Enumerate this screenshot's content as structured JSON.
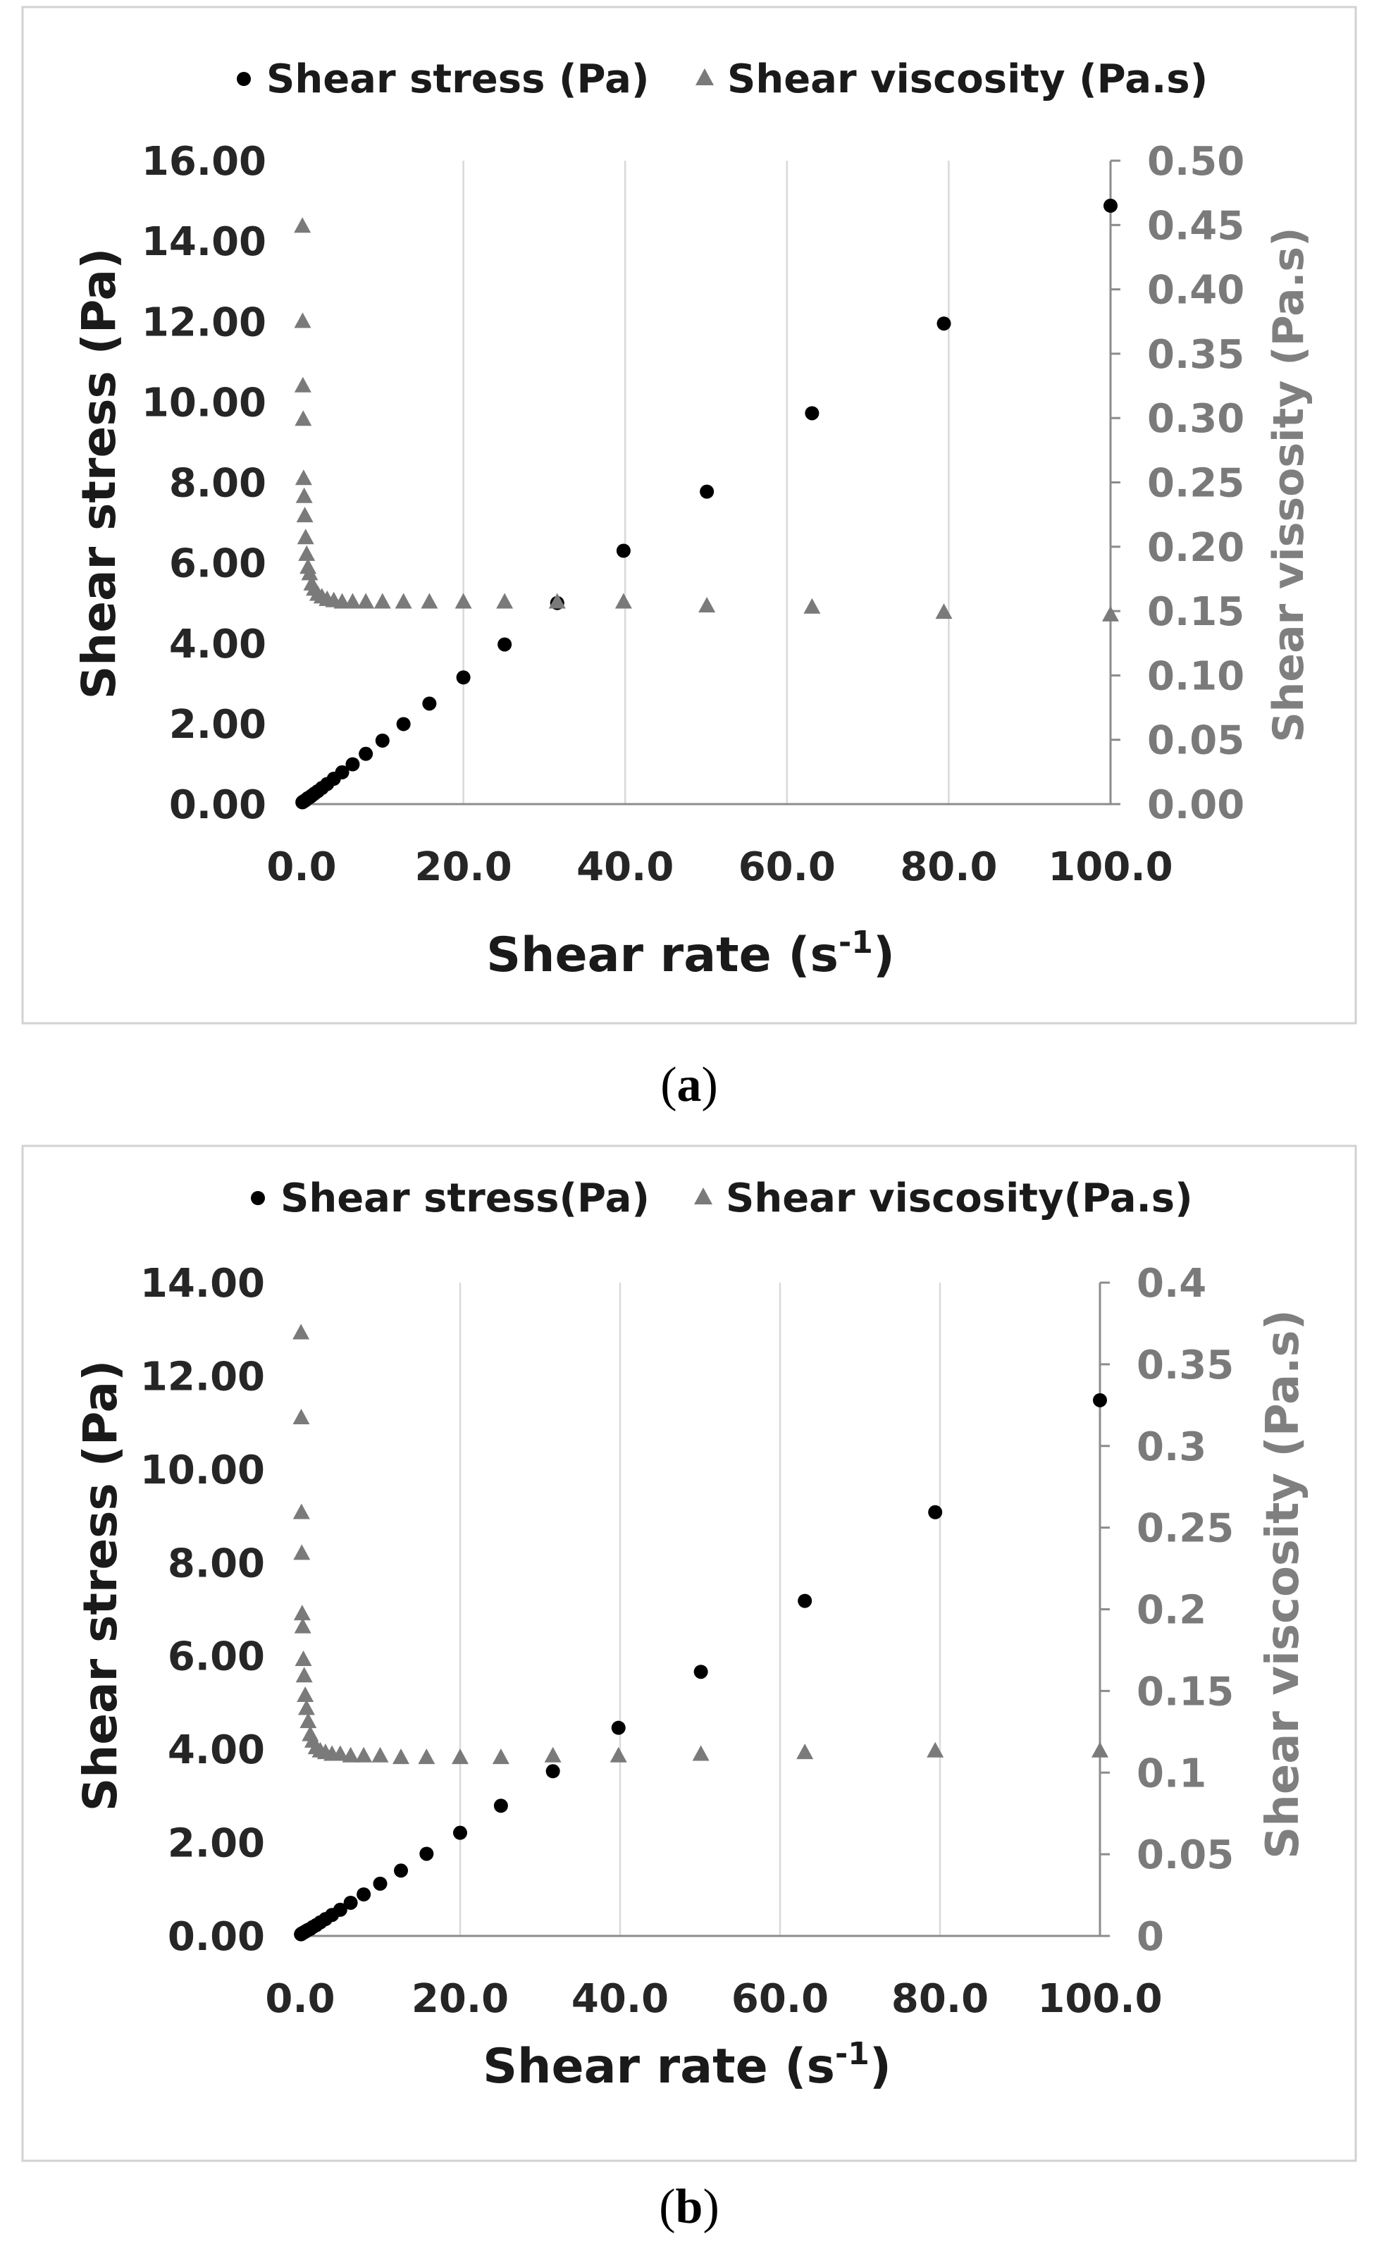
{
  "chart_data": [
    {
      "type": "scatter",
      "caption_letter": "a",
      "xlabel": "Shear rate (s",
      "xlabel_sup": "-1",
      "xlabel_close": ")",
      "ylabel": "Shear stress (Pa)",
      "y2label": "Shear vissosity (Pa.s)",
      "xlim": [
        0,
        100
      ],
      "ylim": [
        0,
        16
      ],
      "y2lim": [
        0,
        0.5
      ],
      "xticks": [
        "0.0",
        "20.0",
        "40.0",
        "60.0",
        "80.0",
        "100.0"
      ],
      "yticks": [
        "0.00",
        "2.00",
        "4.00",
        "6.00",
        "8.00",
        "10.00",
        "12.00",
        "14.00",
        "16.00"
      ],
      "y2ticks": [
        "0.00",
        "0.05",
        "0.10",
        "0.15",
        "0.20",
        "0.25",
        "0.30",
        "0.35",
        "0.40",
        "0.45",
        "0.50"
      ],
      "grid": "vertical",
      "legend_position": "top",
      "series": [
        {
          "name": "Shear stress (Pa)",
          "axis": "left",
          "marker": "circle",
          "color": "#000000",
          "x": [
            0.1,
            0.13,
            0.16,
            0.2,
            0.25,
            0.32,
            0.4,
            0.5,
            0.63,
            0.79,
            1.0,
            1.26,
            1.58,
            2.0,
            2.51,
            3.16,
            3.98,
            5.01,
            6.31,
            7.94,
            10.0,
            12.6,
            15.8,
            20.0,
            25.1,
            31.6,
            39.8,
            50.1,
            63.1,
            79.4,
            100.0
          ],
          "y": [
            0.045,
            0.05,
            0.055,
            0.06,
            0.065,
            0.075,
            0.085,
            0.1,
            0.12,
            0.15,
            0.17,
            0.21,
            0.26,
            0.32,
            0.4,
            0.5,
            0.63,
            0.79,
            0.99,
            1.25,
            1.58,
            1.99,
            2.5,
            3.15,
            3.97,
            5.0,
            6.3,
            7.77,
            9.72,
            11.95,
            14.88
          ]
        },
        {
          "name": "Shear viscosity (Pa.s)",
          "axis": "right",
          "marker": "triangle",
          "color": "#7a7a7a",
          "x": [
            0.1,
            0.13,
            0.16,
            0.2,
            0.25,
            0.32,
            0.4,
            0.5,
            0.63,
            0.79,
            1.0,
            1.26,
            1.58,
            2.0,
            2.51,
            3.16,
            3.98,
            5.01,
            6.31,
            7.94,
            10.0,
            12.6,
            15.8,
            20.0,
            25.1,
            31.6,
            39.8,
            50.1,
            63.1,
            79.4,
            100.0
          ],
          "y": [
            0.45,
            0.376,
            0.326,
            0.3,
            0.254,
            0.24,
            0.225,
            0.208,
            0.195,
            0.185,
            0.18,
            0.172,
            0.168,
            0.164,
            0.162,
            0.16,
            0.159,
            0.158,
            0.158,
            0.158,
            0.158,
            0.158,
            0.158,
            0.158,
            0.158,
            0.158,
            0.158,
            0.155,
            0.154,
            0.15,
            0.148
          ]
        }
      ]
    },
    {
      "type": "scatter",
      "caption_letter": "b",
      "xlabel": "Shear rate (s",
      "xlabel_sup": "-1",
      "xlabel_close": ")",
      "ylabel": "Shear stress (Pa)",
      "y2label": "Shear viscosity (Pa.s)",
      "xlim": [
        0,
        100
      ],
      "ylim": [
        0,
        14
      ],
      "y2lim": [
        0,
        0.4
      ],
      "xticks": [
        "0.0",
        "20.0",
        "40.0",
        "60.0",
        "80.0",
        "100.0"
      ],
      "yticks": [
        "0.00",
        "2.00",
        "4.00",
        "6.00",
        "8.00",
        "10.00",
        "12.00",
        "14.00"
      ],
      "y2ticks": [
        "0",
        "0.05",
        "0.1",
        "0.15",
        "0.2",
        "0.25",
        "0.3",
        "0.35",
        "0.4"
      ],
      "grid": "vertical",
      "legend_position": "top",
      "series": [
        {
          "name": "Shear stress(Pa)",
          "axis": "left",
          "marker": "circle",
          "color": "#000000",
          "x": [
            0.1,
            0.13,
            0.16,
            0.2,
            0.25,
            0.32,
            0.4,
            0.5,
            0.63,
            0.79,
            1.0,
            1.26,
            1.58,
            2.0,
            2.51,
            3.16,
            3.98,
            5.01,
            6.31,
            7.94,
            10.0,
            12.6,
            15.8,
            20.0,
            25.1,
            31.6,
            39.8,
            50.1,
            63.1,
            79.4,
            100.0
          ],
          "y": [
            0.035,
            0.04,
            0.045,
            0.05,
            0.055,
            0.06,
            0.07,
            0.08,
            0.09,
            0.11,
            0.13,
            0.15,
            0.19,
            0.23,
            0.29,
            0.36,
            0.45,
            0.56,
            0.71,
            0.89,
            1.12,
            1.4,
            1.76,
            2.21,
            2.79,
            3.53,
            4.46,
            5.66,
            7.18,
            9.08,
            11.48
          ]
        },
        {
          "name": "Shear viscosity(Pa.s)",
          "axis": "right",
          "marker": "triangle",
          "color": "#7a7a7a",
          "x": [
            0.1,
            0.13,
            0.16,
            0.2,
            0.25,
            0.32,
            0.4,
            0.5,
            0.63,
            0.79,
            1.0,
            1.26,
            1.58,
            2.0,
            2.51,
            3.16,
            3.98,
            5.01,
            6.31,
            7.94,
            10.0,
            12.6,
            15.8,
            20.0,
            25.1,
            31.6,
            39.8,
            50.1,
            63.1,
            79.4,
            100.0
          ],
          "y": [
            0.37,
            0.318,
            0.26,
            0.235,
            0.198,
            0.19,
            0.17,
            0.16,
            0.148,
            0.14,
            0.132,
            0.124,
            0.12,
            0.116,
            0.114,
            0.113,
            0.112,
            0.112,
            0.111,
            0.111,
            0.111,
            0.11,
            0.11,
            0.11,
            0.11,
            0.111,
            0.111,
            0.112,
            0.113,
            0.114,
            0.114
          ]
        }
      ]
    }
  ]
}
